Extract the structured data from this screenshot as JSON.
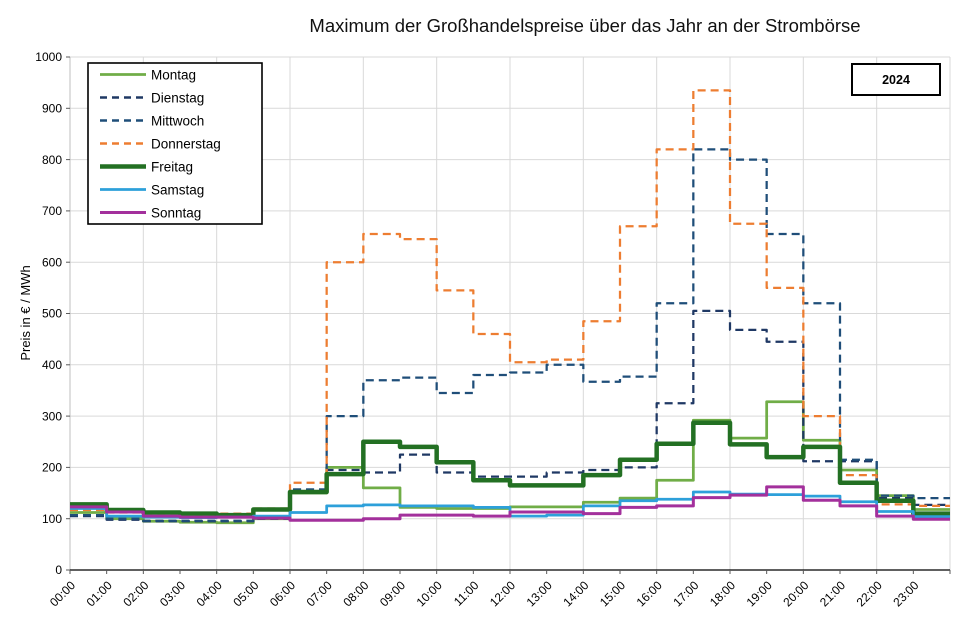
{
  "chart": {
    "title": "Maximum der Großhandelspreise über das Jahr an der Strombörse",
    "year_label": "2024",
    "ylabel": "Preis in € / MWh"
  },
  "chart_data": {
    "type": "line",
    "step": true,
    "title": "Maximum der Großhandelspreise über das Jahr an der Strombörse",
    "xlabel": "",
    "ylabel": "Preis in € / MWh",
    "ylim": [
      0,
      1000
    ],
    "ytick_step": 100,
    "grid": {
      "horizontal": true,
      "vertical_every_hours": 2
    },
    "legend_position": "top-left",
    "x": [
      "00:00",
      "01:00",
      "02:00",
      "03:00",
      "04:00",
      "05:00",
      "06:00",
      "07:00",
      "08:00",
      "09:00",
      "10:00",
      "11:00",
      "12:00",
      "13:00",
      "14:00",
      "15:00",
      "16:00",
      "17:00",
      "18:00",
      "19:00",
      "20:00",
      "21:00",
      "22:00",
      "23:00"
    ],
    "series": [
      {
        "name": "Montag",
        "color": "#70AD47",
        "dash": false,
        "width": 2.75,
        "values": [
          112,
          100,
          95,
          93,
          92,
          100,
          150,
          200,
          160,
          122,
          120,
          120,
          123,
          123,
          132,
          140,
          175,
          292,
          257,
          328,
          253,
          195,
          145,
          118
        ]
      },
      {
        "name": "Dienstag",
        "color": "#1F3864",
        "dash": true,
        "width": 2.25,
        "values": [
          105,
          98,
          95,
          95,
          95,
          100,
          157,
          195,
          190,
          225,
          190,
          182,
          182,
          190,
          195,
          200,
          325,
          505,
          468,
          445,
          212,
          212,
          140,
          127
        ]
      },
      {
        "name": "Mittwoch",
        "color": "#1F4E79",
        "dash": true,
        "width": 2.25,
        "values": [
          107,
          100,
          96,
          96,
          96,
          102,
          157,
          300,
          370,
          375,
          345,
          380,
          385,
          400,
          367,
          377,
          520,
          820,
          800,
          655,
          520,
          215,
          145,
          140
        ]
      },
      {
        "name": "Donnerstag",
        "color": "#ED7D31",
        "dash": true,
        "width": 2.25,
        "values": [
          117,
          112,
          110,
          108,
          110,
          120,
          170,
          600,
          655,
          645,
          545,
          460,
          405,
          410,
          485,
          670,
          820,
          935,
          675,
          550,
          300,
          185,
          128,
          125
        ]
      },
      {
        "name": "Freitag",
        "color": "#237023",
        "dash": false,
        "width": 4.5,
        "values": [
          128,
          117,
          112,
          110,
          107,
          118,
          152,
          187,
          250,
          240,
          210,
          175,
          165,
          165,
          185,
          215,
          246,
          287,
          245,
          220,
          240,
          170,
          135,
          110
        ]
      },
      {
        "name": "Samstag",
        "color": "#2DA0DA",
        "dash": false,
        "width": 2.75,
        "values": [
          120,
          105,
          103,
          102,
          103,
          105,
          112,
          125,
          127,
          125,
          125,
          122,
          105,
          107,
          125,
          135,
          138,
          152,
          148,
          147,
          144,
          133,
          114,
          104
        ]
      },
      {
        "name": "Sonntag",
        "color": "#A3309C",
        "dash": false,
        "width": 3,
        "values": [
          123,
          113,
          105,
          103,
          103,
          101,
          97,
          97,
          100,
          107,
          107,
          105,
          113,
          113,
          110,
          122,
          125,
          141,
          146,
          162,
          136,
          125,
          105,
          99
        ]
      }
    ]
  }
}
